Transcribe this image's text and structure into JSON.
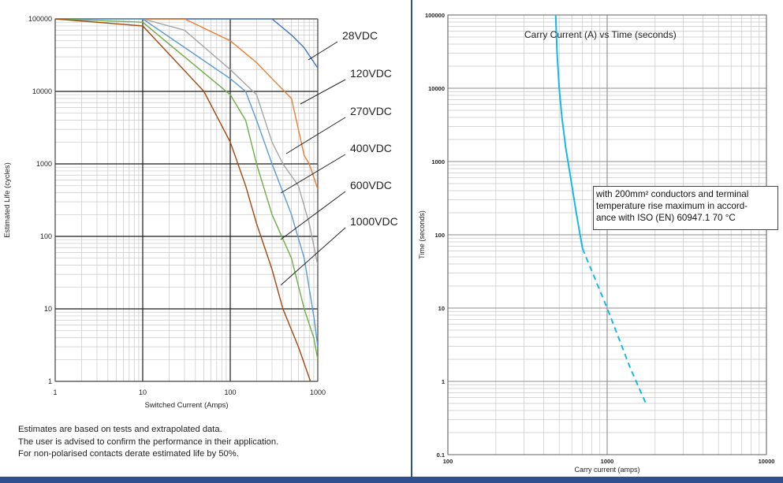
{
  "chart_data": [
    {
      "type": "line",
      "title": "",
      "xlabel": "Switched Current (Amps)",
      "ylabel": "Estimated Life (cycles)",
      "x_scale": "log",
      "y_scale": "log",
      "xlim": [
        1,
        1000
      ],
      "ylim": [
        1,
        100000
      ],
      "x_ticks": [
        1,
        10,
        100,
        1000
      ],
      "x_tick_labels": [
        "1",
        "10",
        "100",
        "1000"
      ],
      "y_ticks": [
        1,
        10,
        100,
        1000,
        10000,
        100000
      ],
      "y_tick_labels": [
        "1",
        "10",
        "100",
        "1000",
        "10000",
        "100000"
      ],
      "grid": true,
      "series": [
        {
          "name": "28VDC",
          "color": "#4472c4",
          "x": [
            1,
            10,
            100,
            300,
            500,
            700,
            850,
            1000
          ],
          "y": [
            100000,
            100000,
            100000,
            100000,
            60000,
            40000,
            28000,
            21000
          ]
        },
        {
          "name": "120VDC",
          "color": "#ed7d31",
          "x": [
            1,
            10,
            30,
            100,
            200,
            300,
            500,
            600,
            700,
            800,
            1000
          ],
          "y": [
            100000,
            100000,
            100000,
            50000,
            25000,
            15000,
            8000,
            3000,
            1300,
            1000,
            450
          ]
        },
        {
          "name": "270VDC",
          "color": "#a5a5a5",
          "x": [
            1,
            10,
            30,
            100,
            200,
            300,
            400,
            600,
            800,
            1000
          ],
          "y": [
            100000,
            100000,
            70000,
            20000,
            9000,
            2000,
            1000,
            500,
            150,
            40
          ]
        },
        {
          "name": "400VDC",
          "color": "#5b9bd5",
          "x": [
            1,
            10,
            100,
            150,
            200,
            300,
            500,
            700,
            900,
            1000
          ],
          "y": [
            100000,
            100000,
            15000,
            10000,
            4000,
            1000,
            200,
            50,
            8,
            3
          ]
        },
        {
          "name": "600VDC",
          "color": "#70ad47",
          "x": [
            1,
            10,
            100,
            150,
            200,
            300,
            500,
            700,
            900,
            1000
          ],
          "y": [
            100000,
            90000,
            9000,
            4000,
            1000,
            200,
            50,
            10,
            4,
            2
          ]
        },
        {
          "name": "1000VDC",
          "color": "#a5460c",
          "x": [
            1,
            10,
            50,
            100,
            150,
            200,
            300,
            400,
            600,
            850
          ],
          "y": [
            100000,
            80000,
            10000,
            2000,
            500,
            150,
            35,
            10,
            3,
            0.9
          ]
        }
      ]
    },
    {
      "type": "line",
      "title": "Carry Current (A) vs Time (seconds)",
      "xlabel": "Carry current (amps)",
      "ylabel": "Time (seconds)",
      "x_scale": "log",
      "y_scale": "log",
      "xlim": [
        100,
        10000
      ],
      "ylim": [
        0.1,
        100000
      ],
      "x_ticks": [
        100,
        1000,
        10000
      ],
      "x_tick_labels": [
        "100",
        "1000",
        "10000"
      ],
      "y_ticks": [
        0.1,
        1,
        10,
        100,
        1000,
        10000,
        100000
      ],
      "y_tick_labels": [
        "0.1",
        "1",
        "10",
        "100",
        "1000",
        "10000",
        "100000"
      ],
      "grid": true,
      "series": [
        {
          "style": "solid",
          "color": "#16b8e8",
          "x": [
            475,
            485,
            500,
            520,
            550,
            590,
            640,
            700
          ],
          "y": [
            100000,
            30000,
            10000,
            4000,
            1500,
            600,
            200,
            65
          ]
        },
        {
          "style": "dashed",
          "color": "#16b8e8",
          "x": [
            700,
            1000,
            1400,
            1750
          ],
          "y": [
            65,
            10,
            1.5,
            0.5
          ]
        }
      ]
    }
  ],
  "notes": [
    "Estimates are based on tests and extrapolated data.",
    "The user is advised to confirm the performance in their application.",
    "For non-polarised contacts derate estimated life by 50%."
  ],
  "annotation": {
    "lines": [
      "with 200mm² conductors and terminal",
      "temperature rise maximum in accord-",
      "ance with ISO (EN) 60947.1 70 °C"
    ]
  }
}
